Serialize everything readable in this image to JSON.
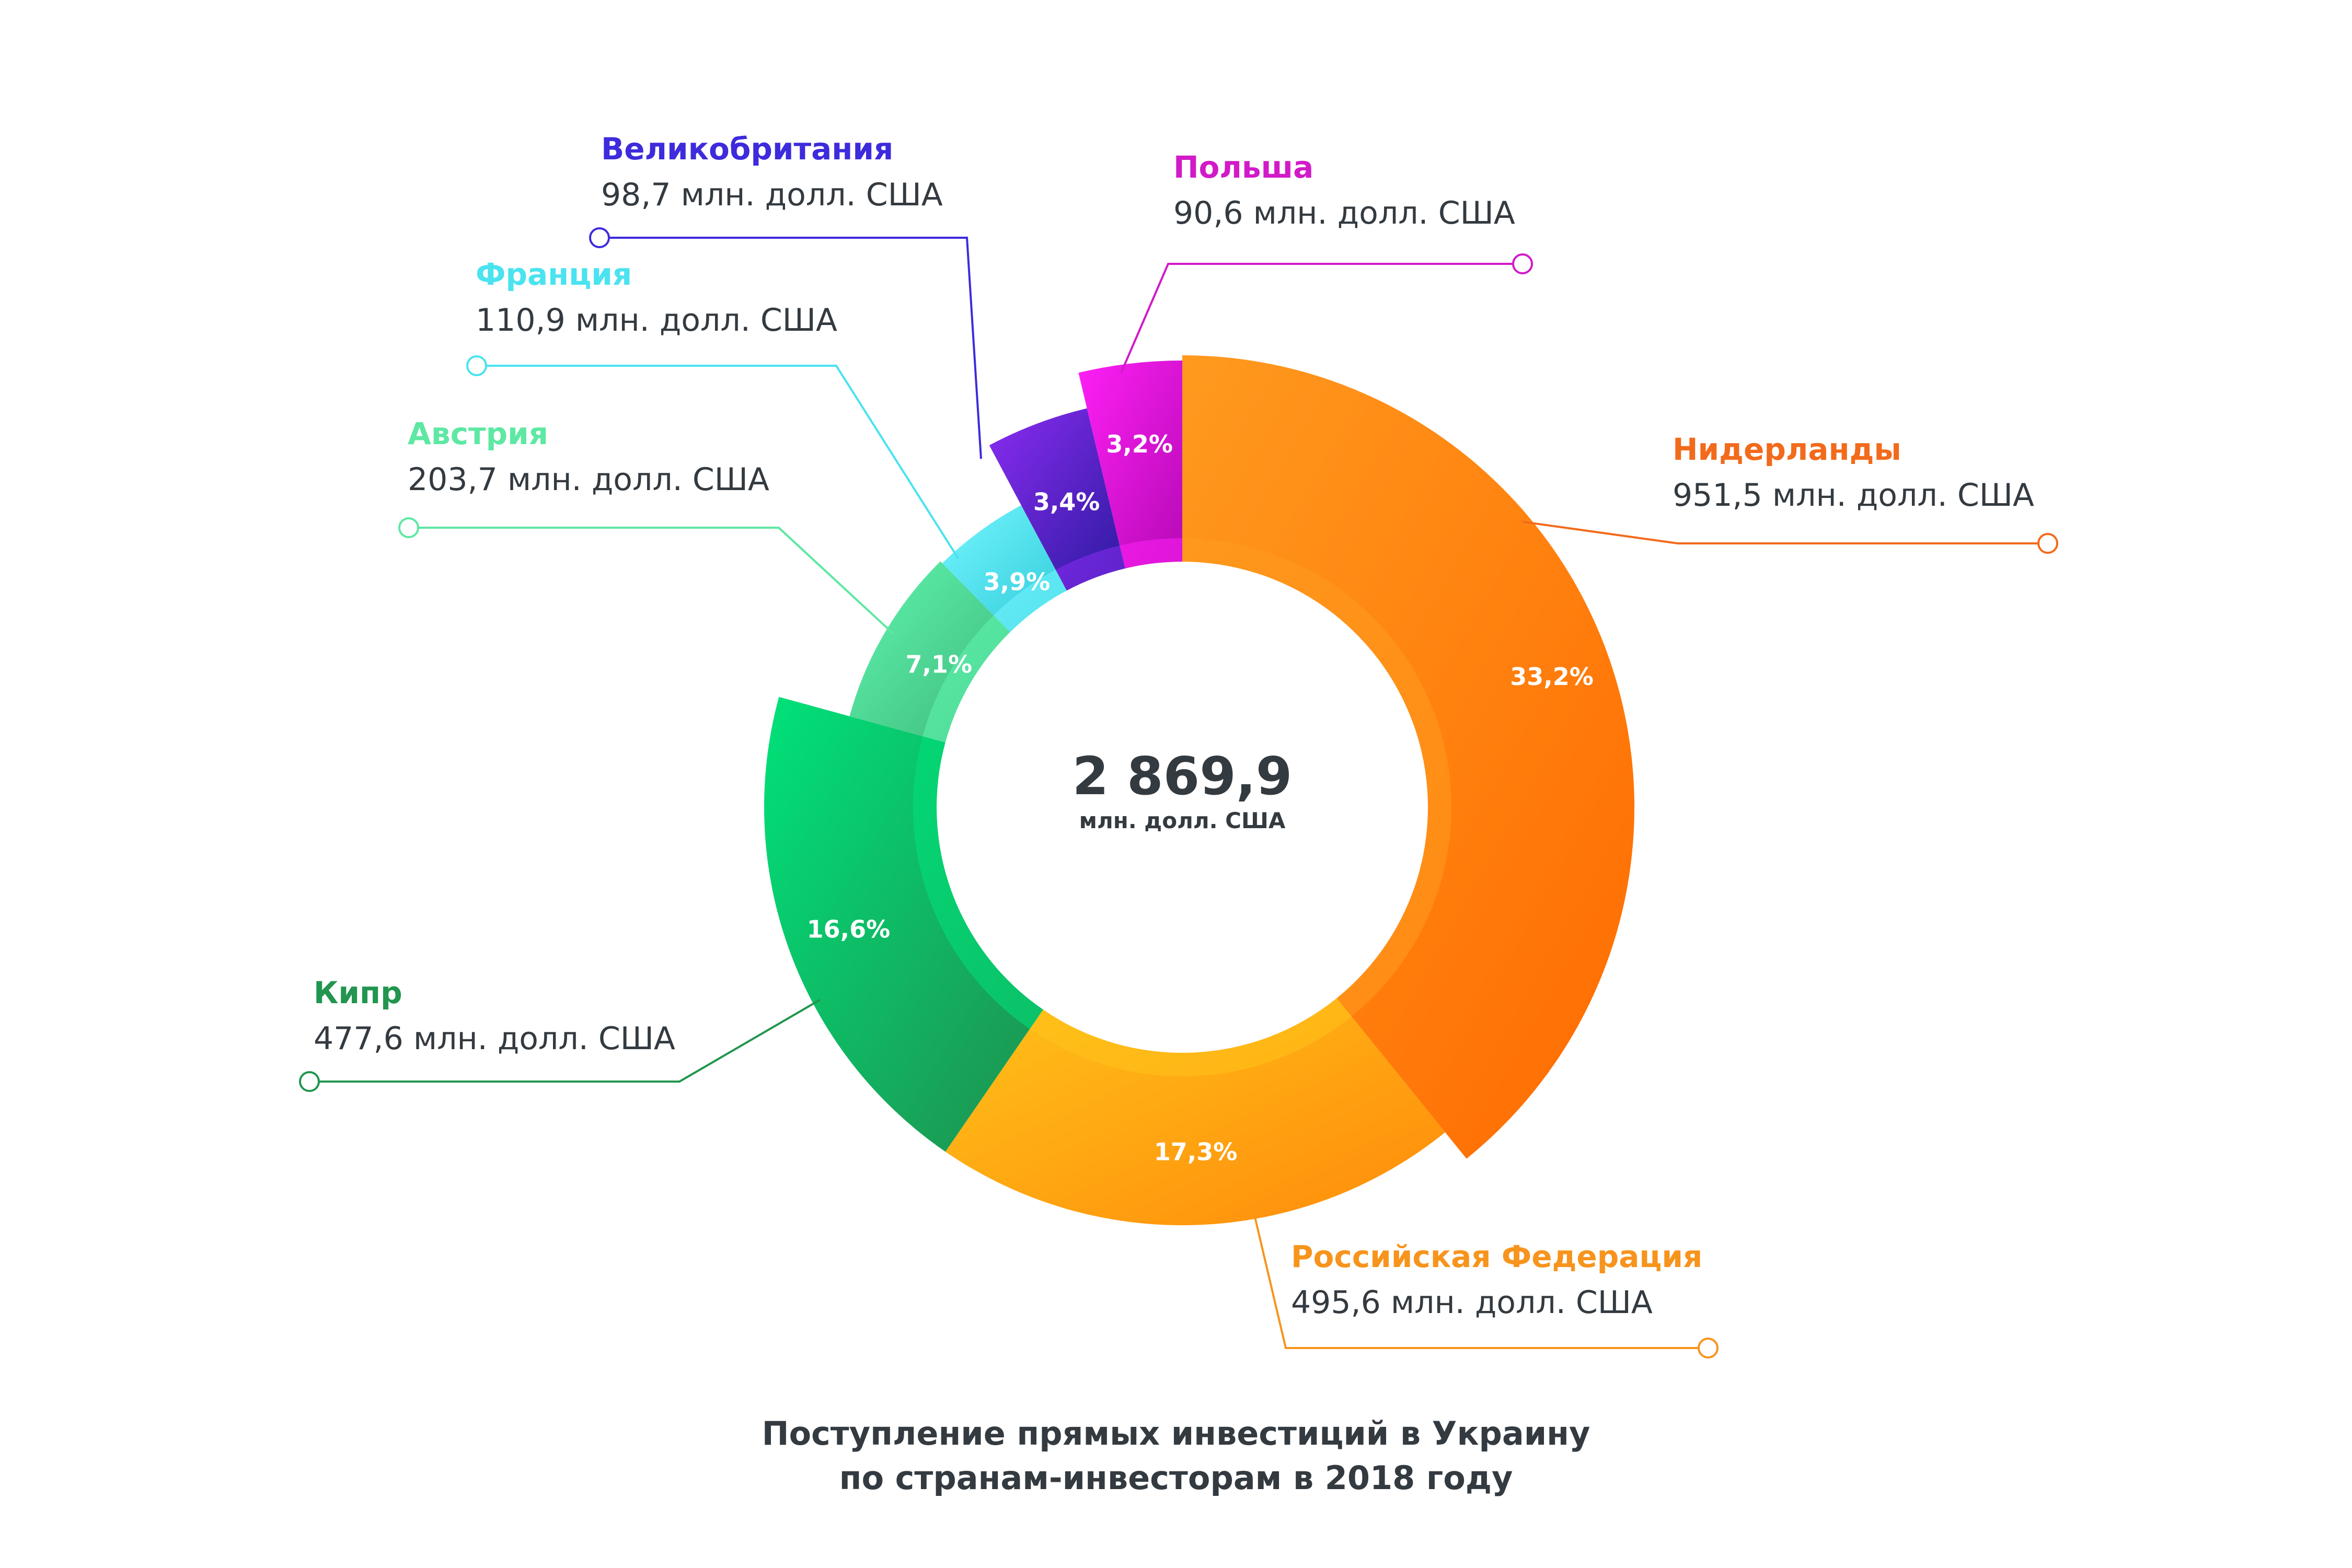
{
  "chart_data": {
    "type": "pie",
    "title": "Поступление прямых инвестиций в Украину",
    "subtitle": "по странам-инвесторам в 2018 году",
    "center_total": "2 869,9",
    "center_unit": "млн. долл. США",
    "unit_label": "млн. долл. США",
    "slices": [
      {
        "name": "Нидерланды",
        "value": 951.5,
        "value_label": "951,5",
        "percent_label": "33,2%",
        "color": "#ff6a00",
        "color_light": "#ff9a1f",
        "label_color": "#f26a1b"
      },
      {
        "name": "Российская Федерация",
        "value": 495.6,
        "value_label": "495,6",
        "percent_label": "17,3%",
        "color": "#ff8a0a",
        "color_light": "#ffc21a",
        "label_color": "#f7941d"
      },
      {
        "name": "Кипр",
        "value": 477.6,
        "value_label": "477,6",
        "percent_label": "16,6%",
        "color": "#1f8f4e",
        "color_light": "#00e27a",
        "label_color": "#22954f"
      },
      {
        "name": "Австрия",
        "value": 203.7,
        "value_label": "203,7",
        "percent_label": "7,1%",
        "color": "#3fb879",
        "color_light": "#5ff5b0",
        "label_color": "#5ee8a3"
      },
      {
        "name": "Франция",
        "value": 110.9,
        "value_label": "110,9",
        "percent_label": "3,9%",
        "color": "#2fc9d8",
        "color_light": "#74f6ff",
        "label_color": "#4ae3f0"
      },
      {
        "name": "Великобритания",
        "value": 98.7,
        "value_label": "98,7",
        "percent_label": "3,4%",
        "color": "#2a1a9e",
        "color_light": "#8b2cf2",
        "label_color": "#3d2bdc"
      },
      {
        "name": "Польша",
        "value": 90.6,
        "value_label": "90,6",
        "percent_label": "3,2%",
        "color": "#b50ab5",
        "color_light": "#ff1ff5",
        "label_color": "#d21ac8"
      }
    ]
  }
}
